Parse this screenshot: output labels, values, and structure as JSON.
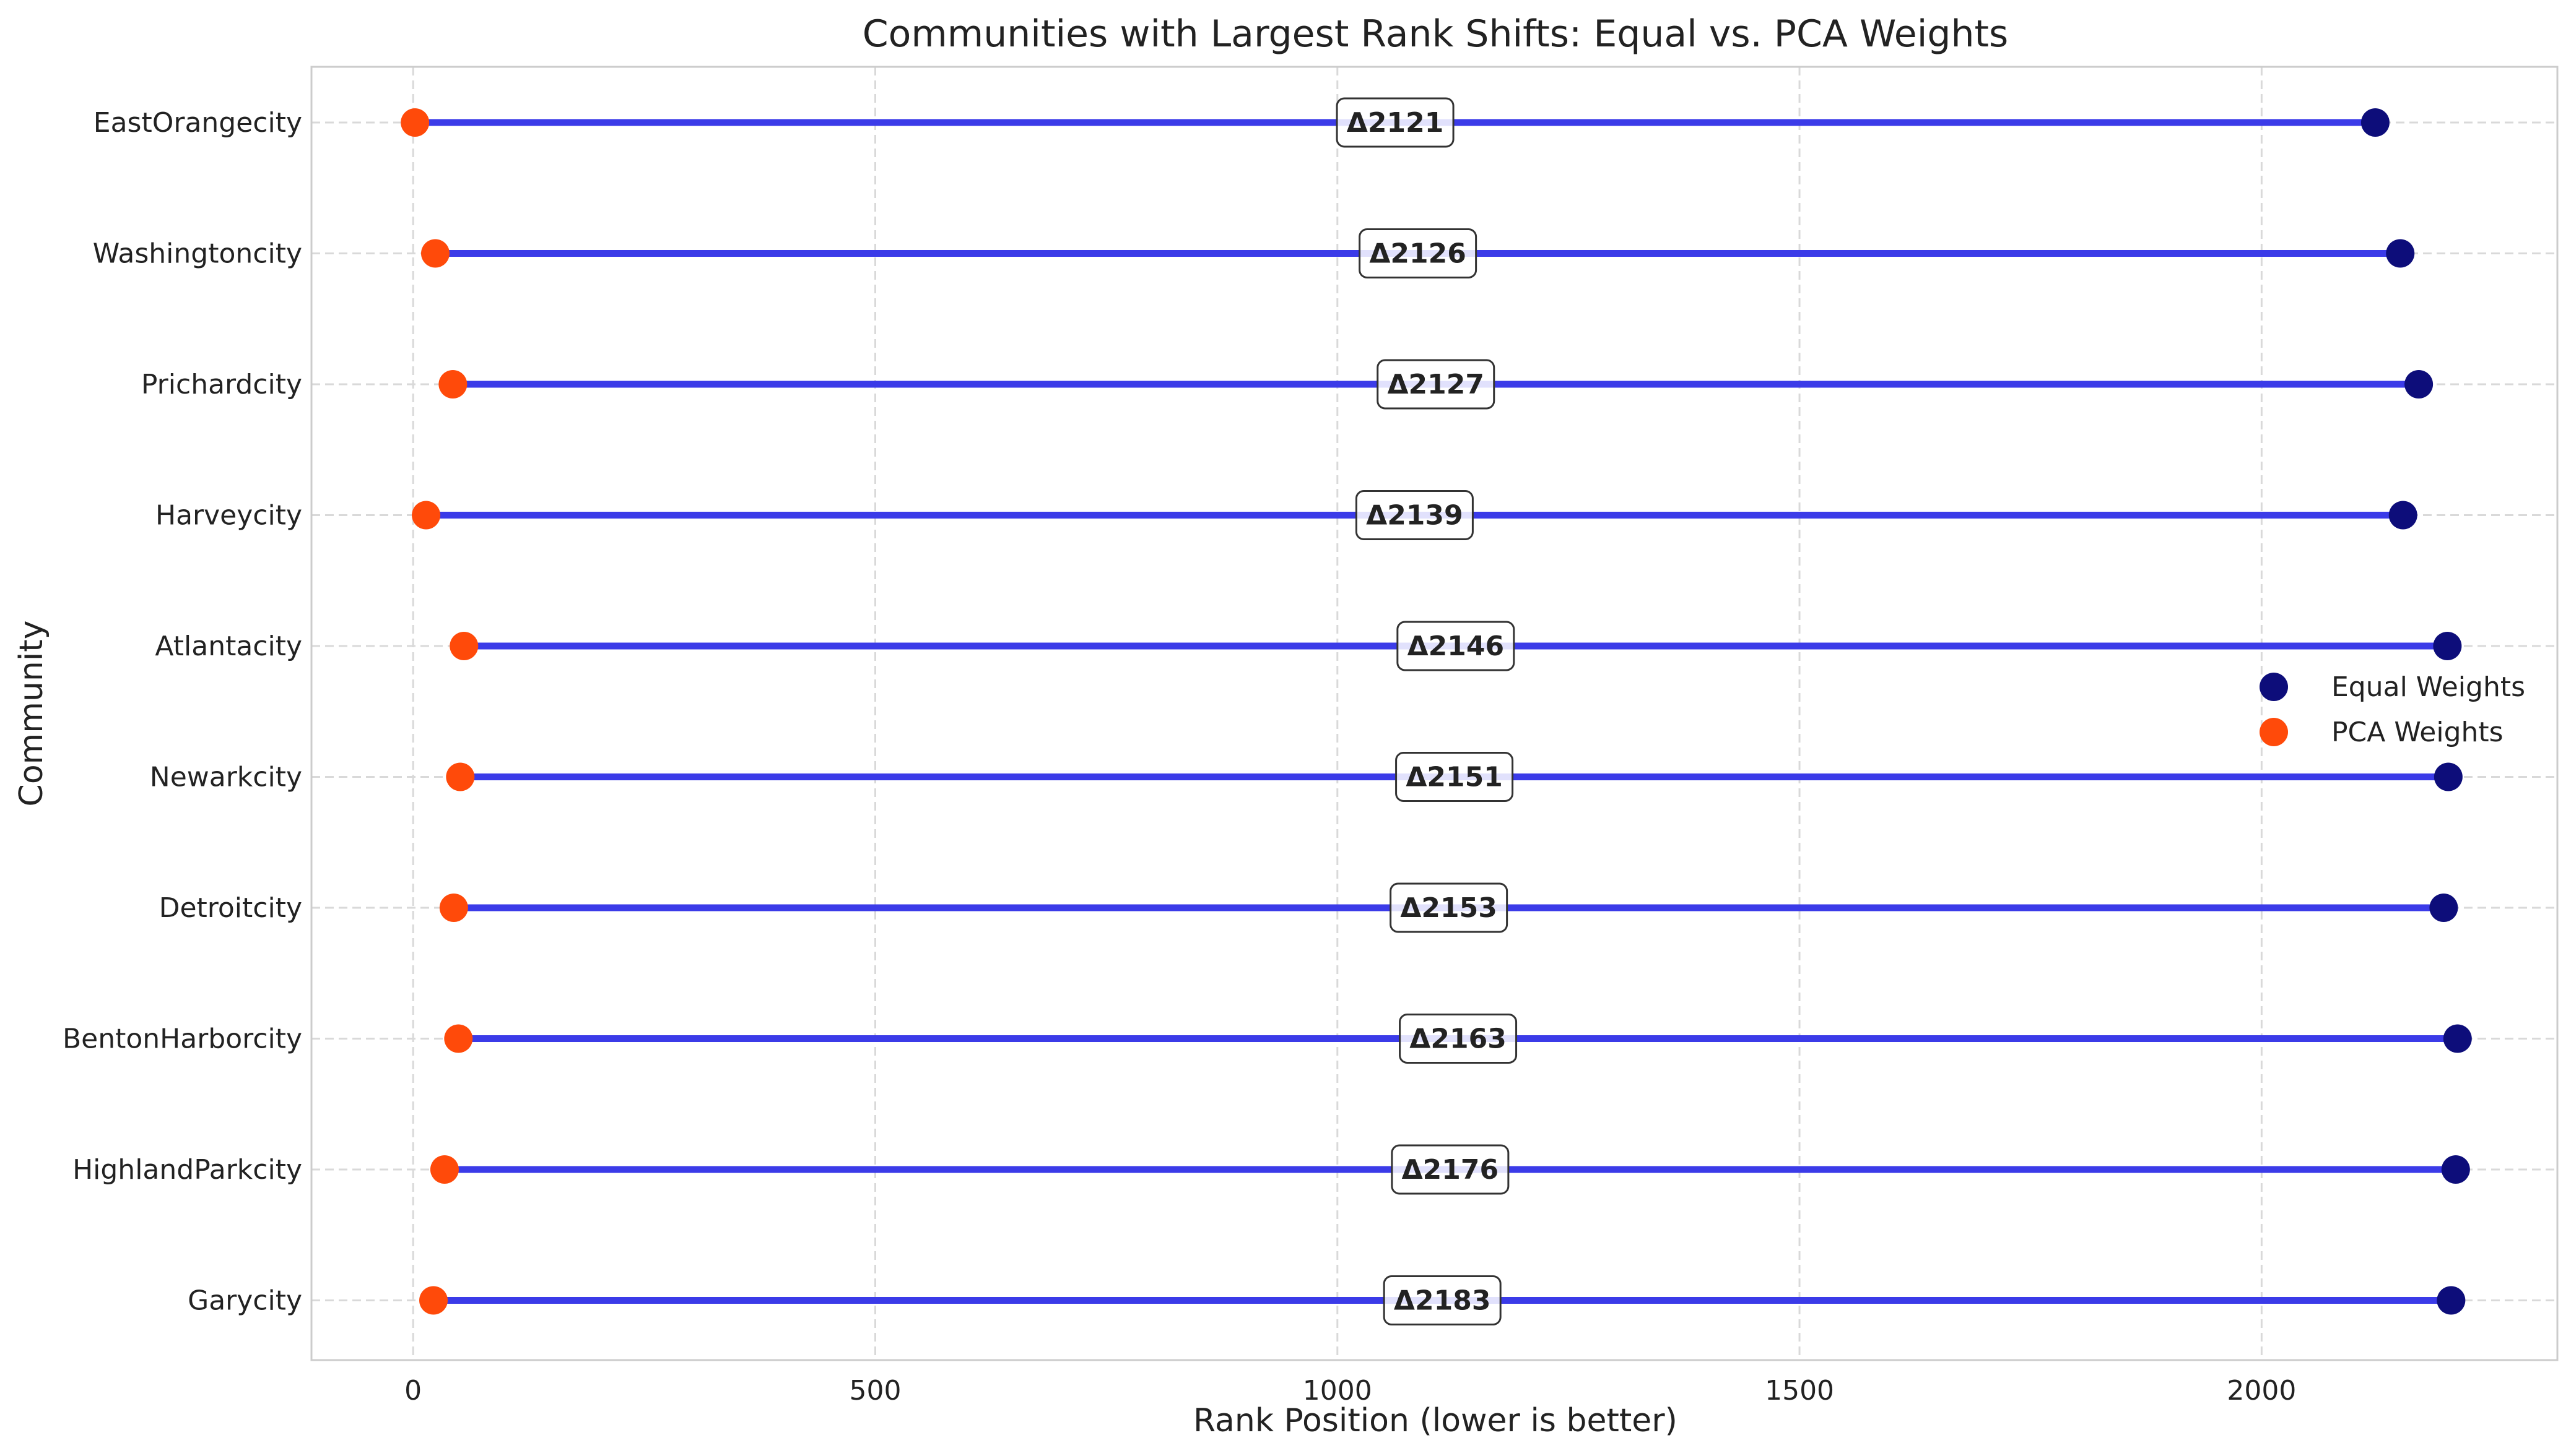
{
  "chart_data": {
    "type": "dumbbell",
    "title": "Communities with Largest Rank Shifts: Equal vs. PCA Weights",
    "xlabel": "Rank Position (lower is better)",
    "ylabel": "Community",
    "xlim": [
      -110,
      2320
    ],
    "xticks": [
      0,
      500,
      1000,
      1500,
      2000
    ],
    "grid": true,
    "legend_position": "center-right",
    "colors": {
      "equal": "#0d0d7a",
      "pca": "#ff4a0a",
      "connector": "#3b3be8"
    },
    "series": [
      {
        "name": "Equal Weights",
        "color": "#0d0d7a"
      },
      {
        "name": "PCA Weights",
        "color": "#ff4a0a"
      }
    ],
    "communities": [
      {
        "name": "EastOrangecity",
        "equal": 2123,
        "pca": 2,
        "delta_label": "Δ2121"
      },
      {
        "name": "Washingtoncity",
        "equal": 2150,
        "pca": 24,
        "delta_label": "Δ2126"
      },
      {
        "name": "Prichardcity",
        "equal": 2170,
        "pca": 43,
        "delta_label": "Δ2127"
      },
      {
        "name": "Harveycity",
        "equal": 2153,
        "pca": 14,
        "delta_label": "Δ2139"
      },
      {
        "name": "Atlantacity",
        "equal": 2201,
        "pca": 55,
        "delta_label": "Δ2146"
      },
      {
        "name": "Newarkcity",
        "equal": 2202,
        "pca": 51,
        "delta_label": "Δ2151"
      },
      {
        "name": "Detroitcity",
        "equal": 2197,
        "pca": 44,
        "delta_label": "Δ2153"
      },
      {
        "name": "BentonHarborcity",
        "equal": 2212,
        "pca": 49,
        "delta_label": "Δ2163"
      },
      {
        "name": "HighlandParkcity",
        "equal": 2210,
        "pca": 34,
        "delta_label": "Δ2176"
      },
      {
        "name": "Garycity",
        "equal": 2205,
        "pca": 22,
        "delta_label": "Δ2183"
      }
    ]
  }
}
